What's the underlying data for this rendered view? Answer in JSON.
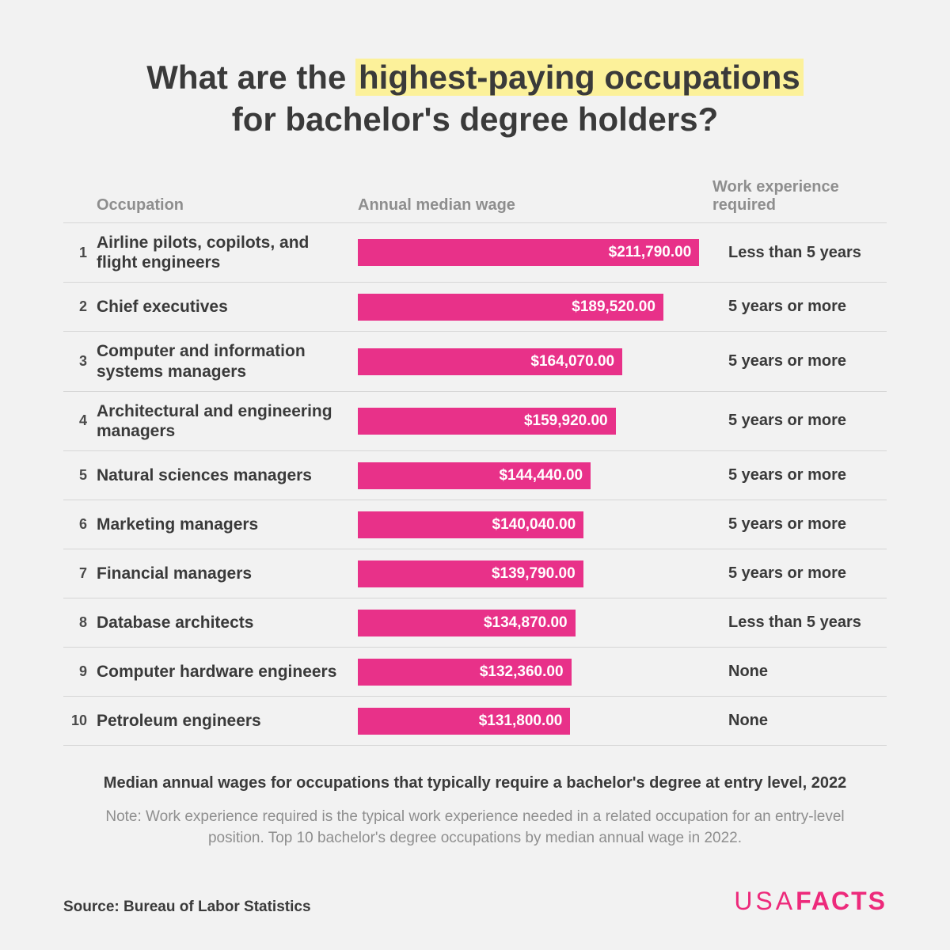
{
  "title_pre": "What are the ",
  "title_hl": "highest-paying occupations",
  "title_post": " for bachelor's degree holders?",
  "headers": {
    "occupation": "Occupation",
    "wage": "Annual median wage",
    "exp": "Work experience required"
  },
  "chart": {
    "bar_color": "#e83189",
    "bar_text_color": "#ffffff",
    "max_value": 220000,
    "rows": [
      {
        "rank": "1",
        "occupation": "Airline pilots, copilots, and flight  engineers",
        "value": 211790,
        "label": "$211,790.00",
        "experience": "Less than 5 years"
      },
      {
        "rank": "2",
        "occupation": "Chief executives",
        "value": 189520,
        "label": "$189,520.00",
        "experience": "5 years or more"
      },
      {
        "rank": "3",
        "occupation": "Computer and information systems managers",
        "value": 164070,
        "label": "$164,070.00",
        "experience": "5 years or more"
      },
      {
        "rank": "4",
        "occupation": "Architectural and engineering managers",
        "value": 159920,
        "label": "$159,920.00",
        "experience": "5 years or more"
      },
      {
        "rank": "5",
        "occupation": "Natural sciences managers",
        "value": 144440,
        "label": "$144,440.00",
        "experience": "5 years or more"
      },
      {
        "rank": "6",
        "occupation": "Marketing managers",
        "value": 140040,
        "label": "$140,040.00",
        "experience": "5 years or more"
      },
      {
        "rank": "7",
        "occupation": "Financial managers",
        "value": 139790,
        "label": "$139,790.00",
        "experience": "5 years or more"
      },
      {
        "rank": "8",
        "occupation": "Database architects",
        "value": 134870,
        "label": "$134,870.00",
        "experience": "Less than 5 years"
      },
      {
        "rank": "9",
        "occupation": "Computer hardware engineers",
        "value": 132360,
        "label": "$132,360.00",
        "experience": "None"
      },
      {
        "rank": "10",
        "occupation": "Petroleum engineers",
        "value": 131800,
        "label": "$131,800.00",
        "experience": "None"
      }
    ]
  },
  "subtitle": "Median annual wages for occupations that typically require a bachelor's degree at entry level, 2022",
  "note": "Note: Work experience required is the typical work experience needed in a related occupation for an entry-level position. Top 10 bachelor's degree occupations by median annual wage in 2022.",
  "source": "Source: Bureau of Labor Statistics",
  "logo_light": "USA",
  "logo_bold": "FACTS"
}
